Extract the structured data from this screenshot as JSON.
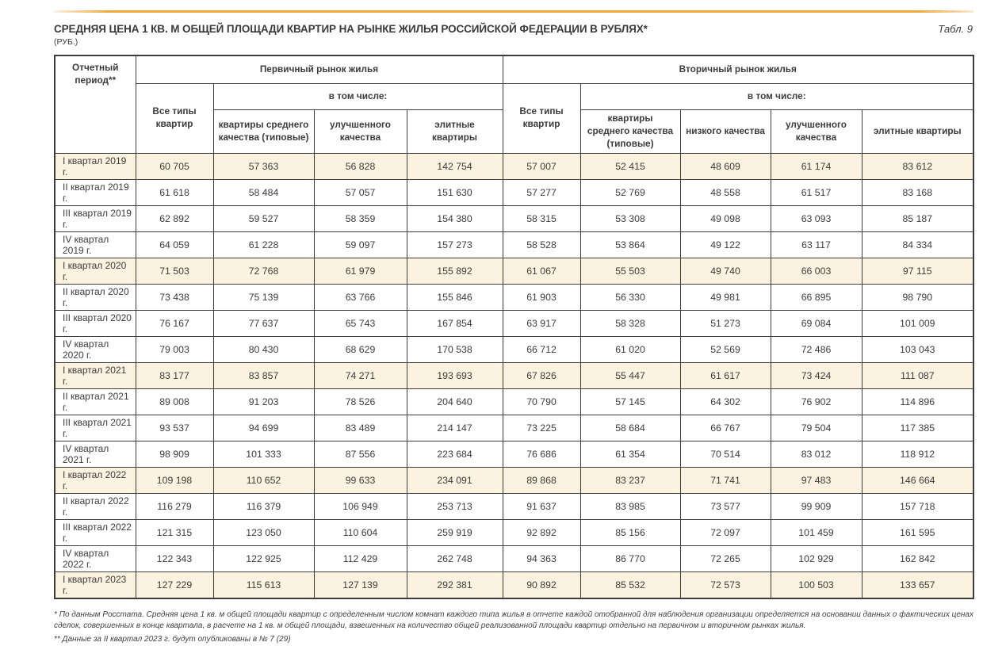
{
  "page": {
    "title": "СРЕДНЯЯ ЦЕНА 1 КВ. М ОБЩЕЙ ПЛОЩАДИ КВАРТИР НА РЫНКЕ ЖИЛЬЯ РОССИЙСКОЙ ФЕДЕРАЦИИ В РУБЛЯХ*",
    "table_ref": "Табл. 9",
    "unit": "(РУБ.)"
  },
  "colors": {
    "accent_rule": "#f0a83e",
    "row_highlight": "#fbf2df",
    "border": "#3c3c3c",
    "text": "#3c3c3c"
  },
  "table": {
    "header": {
      "period": "Отчетный период**",
      "primary_market": "Первичный рынок жилья",
      "secondary_market": "Вторичный рынок жилья",
      "all_types": "Все типы квартир",
      "including": "в том числе:",
      "primary_subcols": [
        "квартиры среднего качества (типовые)",
        "улучшенного качества",
        "элитные квартиры"
      ],
      "secondary_subcols": [
        "квартиры среднего качества (типовые)",
        "низкого качества",
        "улучшенного качества",
        "элитные квартиры"
      ]
    },
    "rows": [
      {
        "period": "I квартал 2019 г.",
        "highlight": true,
        "values": [
          "60 705",
          "57 363",
          "56 828",
          "142 754",
          "57 007",
          "52 415",
          "48 609",
          "61 174",
          "83 612"
        ]
      },
      {
        "period": "II квартал 2019 г.",
        "highlight": false,
        "values": [
          "61 618",
          "58 484",
          "57 057",
          "151 630",
          "57 277",
          "52 769",
          "48 558",
          "61 517",
          "83 168"
        ]
      },
      {
        "period": "III квартал 2019 г.",
        "highlight": false,
        "values": [
          "62 892",
          "59 527",
          "58 359",
          "154 380",
          "58 315",
          "53 308",
          "49 098",
          "63 093",
          "85 187"
        ]
      },
      {
        "period": "IV квартал 2019 г.",
        "highlight": false,
        "values": [
          "64 059",
          "61 228",
          "59 097",
          "157 273",
          "58 528",
          "53 864",
          "49 122",
          "63 117",
          "84 334"
        ]
      },
      {
        "period": "I квартал 2020 г.",
        "highlight": true,
        "values": [
          "71 503",
          "72 768",
          "61 979",
          "155 892",
          "61 067",
          "55 503",
          "49 740",
          "66 003",
          "97 115"
        ]
      },
      {
        "period": "II квартал 2020 г.",
        "highlight": false,
        "values": [
          "73 438",
          "75 139",
          "63 766",
          "155 846",
          "61 903",
          "56 330",
          "49 981",
          "66 895",
          "98 790"
        ]
      },
      {
        "period": "III квартал 2020 г.",
        "highlight": false,
        "values": [
          "76 167",
          "77 637",
          "65 743",
          "167 854",
          "63 917",
          "58 328",
          "51 273",
          "69 084",
          "101 009"
        ]
      },
      {
        "period": "IV квартал 2020 г.",
        "highlight": false,
        "values": [
          "79 003",
          "80 430",
          "68 629",
          "170 538",
          "66 712",
          "61 020",
          "52 569",
          "72 486",
          "103 043"
        ]
      },
      {
        "period": "I квартал 2021 г.",
        "highlight": true,
        "values": [
          "83 177",
          "83 857",
          "74 271",
          "193 693",
          "67 826",
          "55 447",
          "61 617",
          "73 424",
          "111 087"
        ]
      },
      {
        "period": "II квартал 2021 г.",
        "highlight": false,
        "values": [
          "89 008",
          "91 203",
          "78 526",
          "204 640",
          "70 790",
          "57 145",
          "64 302",
          "76 902",
          "114 896"
        ]
      },
      {
        "period": "III квартал 2021 г.",
        "highlight": false,
        "values": [
          "93 537",
          "94 699",
          "83 489",
          "214 147",
          "73 225",
          "58 684",
          "66 767",
          "79 504",
          "117 385"
        ]
      },
      {
        "period": "IV квартал 2021 г.",
        "highlight": false,
        "values": [
          "98 909",
          "101 333",
          "87 556",
          "223 684",
          "76 686",
          "61 354",
          "70 514",
          "83 012",
          "118 912"
        ]
      },
      {
        "period": "I квартал 2022 г.",
        "highlight": true,
        "values": [
          "109 198",
          "110 652",
          "99 633",
          "234 091",
          "89 868",
          "83 237",
          "71 741",
          "97 483",
          "146 664"
        ]
      },
      {
        "period": "II квартал 2022 г.",
        "highlight": false,
        "values": [
          "116 279",
          "116 379",
          "106 949",
          "253 713",
          "91 637",
          "83 985",
          "73 577",
          "99 909",
          "157 718"
        ]
      },
      {
        "period": "III квартал 2022 г.",
        "highlight": false,
        "values": [
          "121 315",
          "123 050",
          "110 604",
          "259 919",
          "92 892",
          "85 156",
          "72 097",
          "101 459",
          "161 595"
        ]
      },
      {
        "period": "IV квартал 2022 г.",
        "highlight": false,
        "values": [
          "122 343",
          "122 925",
          "112 429",
          "262 748",
          "94 363",
          "86 770",
          "72 265",
          "102 929",
          "162 842"
        ]
      },
      {
        "period": "I квартал 2023 г.",
        "highlight": true,
        "values": [
          "127 229",
          "115 613",
          "127 139",
          "292 381",
          "90 892",
          "85 532",
          "72 573",
          "100 503",
          "133 657"
        ]
      }
    ]
  },
  "footnotes": [
    "* По данным Росстата. Средняя цена 1 кв. м общей площади квартир с определенным числом комнат каждого типа жилья в отчете каждой отобранной для наблюдения организации определяется на основании данных о фактических ценах сделок, совершенных в конце квартала, в расчете на 1 кв. м общей площади, взвешенных на количество общей реализованной площади квартир отдельно на первичном и вторичном рынках жилья.",
    "** Данные за II квартал 2023 г. будут опубликованы в № 7 (29)"
  ]
}
